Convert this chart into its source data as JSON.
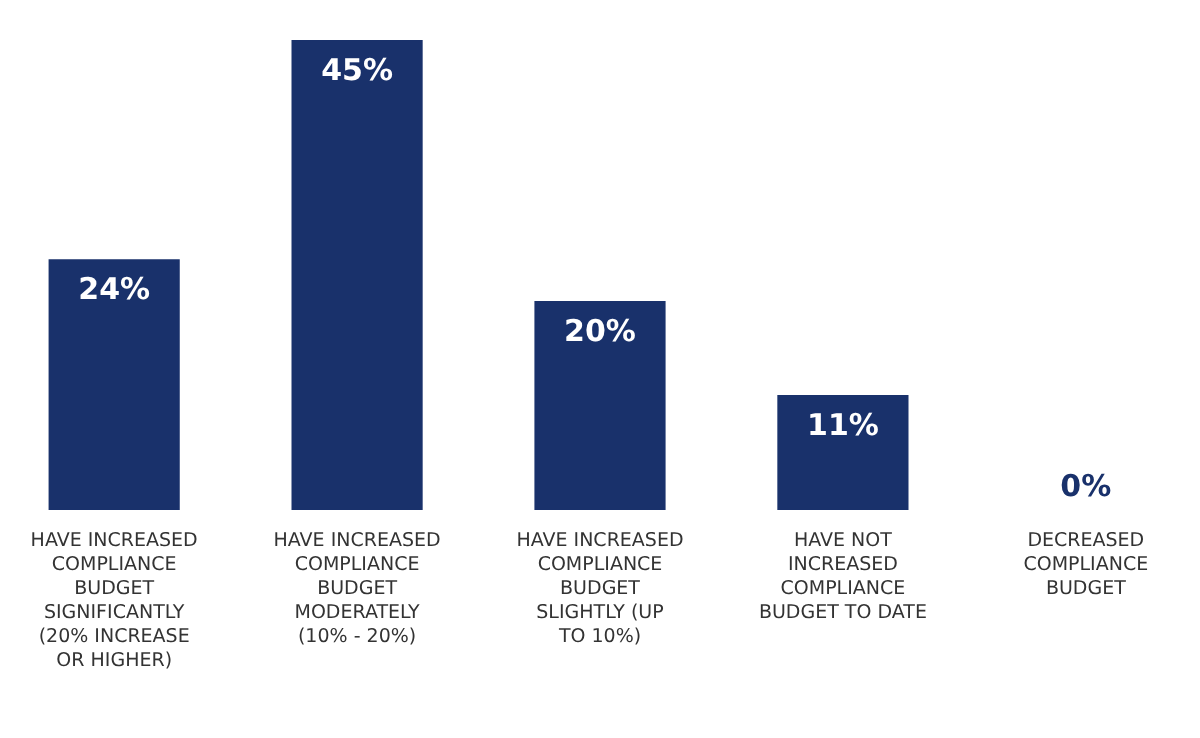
{
  "chart_data": {
    "type": "bar",
    "categories": [
      "HAVE INCREASED COMPLIANCE BUDGET SIGNIFICANTLY (20% INCREASE OR HIGHER)",
      "HAVE INCREASED COMPLIANCE BUDGET MODERATELY (10% - 20%)",
      "HAVE INCREASED COMPLIANCE BUDGET SLIGHTLY (UP TO 10%)",
      "HAVE NOT INCREASED COMPLIANCE BUDGET TO DATE",
      "DECREASED COMPLIANCE BUDGET"
    ],
    "values": [
      24,
      45,
      20,
      11,
      0
    ],
    "value_labels": [
      "24%",
      "45%",
      "20%",
      "11%",
      "0%"
    ],
    "color": "#19316b"
  }
}
